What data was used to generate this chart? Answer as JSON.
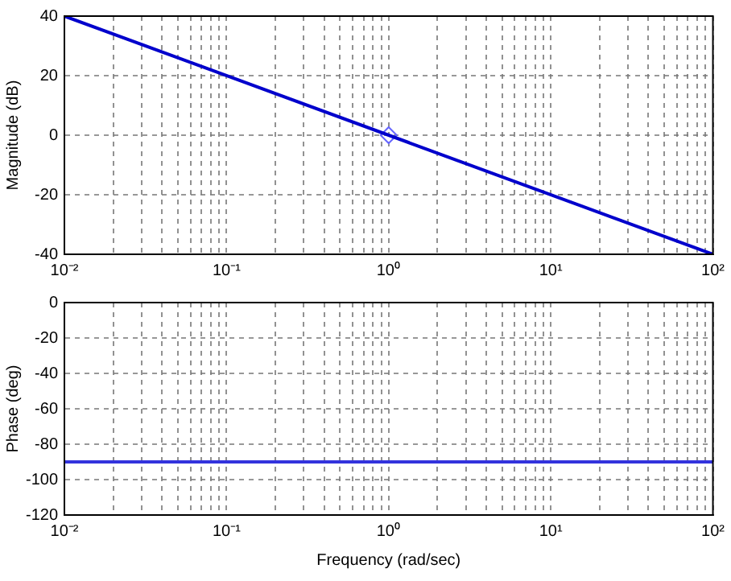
{
  "chart_data": [
    {
      "type": "line",
      "ylabel": "Magnitude (dB)",
      "xlim": [
        0.01,
        100
      ],
      "ylim": [
        -40,
        40
      ],
      "yticks": [
        -40,
        -20,
        0,
        20,
        40
      ],
      "log": "x",
      "grid": true,
      "line_style": "solid",
      "xticks": [
        {
          "value": 0.01,
          "label": "10⁻²"
        },
        {
          "value": 0.02,
          "label": null
        },
        {
          "value": 0.03,
          "label": null
        },
        {
          "value": 0.04,
          "label": null
        },
        {
          "value": 0.05,
          "label": null
        },
        {
          "value": 0.06,
          "label": null
        },
        {
          "value": 0.07,
          "label": null
        },
        {
          "value": 0.08,
          "label": null
        },
        {
          "value": 0.09,
          "label": null
        },
        {
          "value": 0.1,
          "label": "10⁻¹"
        },
        {
          "value": 0.2,
          "label": null
        },
        {
          "value": 0.3,
          "label": null
        },
        {
          "value": 0.4,
          "label": null
        },
        {
          "value": 0.5,
          "label": null
        },
        {
          "value": 0.6,
          "label": null
        },
        {
          "value": 0.7,
          "label": null
        },
        {
          "value": 0.8,
          "label": null
        },
        {
          "value": 0.9,
          "label": null
        },
        {
          "value": 1,
          "label": "10⁰"
        },
        {
          "value": 2,
          "label": null
        },
        {
          "value": 3,
          "label": null
        },
        {
          "value": 4,
          "label": null
        },
        {
          "value": 5,
          "label": null
        },
        {
          "value": 6,
          "label": null
        },
        {
          "value": 7,
          "label": null
        },
        {
          "value": 8,
          "label": null
        },
        {
          "value": 9,
          "label": null
        },
        {
          "value": 10,
          "label": "10¹"
        },
        {
          "value": 20,
          "label": null
        },
        {
          "value": 30,
          "label": null
        },
        {
          "value": 40,
          "label": null
        },
        {
          "value": 50,
          "label": null
        },
        {
          "value": 60,
          "label": null
        },
        {
          "value": 70,
          "label": null
        },
        {
          "value": 80,
          "label": null
        },
        {
          "value": 90,
          "label": null
        },
        {
          "value": 100,
          "label": "10²"
        }
      ],
      "series": [
        {
          "type": "line",
          "x": [
            0.01,
            100
          ],
          "values": [
            40,
            -40
          ],
          "color": "#0000cc"
        },
        {
          "type": "scatter",
          "x": [
            1
          ],
          "values": [
            0
          ],
          "color": "#6666ff",
          "marker": "diamond"
        }
      ]
    },
    {
      "type": "line",
      "xlabel": "Frequency (rad/sec)",
      "ylabel": "Phase (deg)",
      "xlim": [
        0.01,
        100
      ],
      "ylim": [
        -120,
        0
      ],
      "yticks": [
        -120,
        -100,
        -80,
        -60,
        -40,
        -20,
        0
      ],
      "log": "x",
      "grid": true,
      "line_style": "solid",
      "xticks": [
        {
          "value": 0.01,
          "label": "10⁻²"
        },
        {
          "value": 0.02,
          "label": null
        },
        {
          "value": 0.03,
          "label": null
        },
        {
          "value": 0.04,
          "label": null
        },
        {
          "value": 0.05,
          "label": null
        },
        {
          "value": 0.06,
          "label": null
        },
        {
          "value": 0.07,
          "label": null
        },
        {
          "value": 0.08,
          "label": null
        },
        {
          "value": 0.09,
          "label": null
        },
        {
          "value": 0.1,
          "label": "10⁻¹"
        },
        {
          "value": 0.2,
          "label": null
        },
        {
          "value": 0.3,
          "label": null
        },
        {
          "value": 0.4,
          "label": null
        },
        {
          "value": 0.5,
          "label": null
        },
        {
          "value": 0.6,
          "label": null
        },
        {
          "value": 0.7,
          "label": null
        },
        {
          "value": 0.8,
          "label": null
        },
        {
          "value": 0.9,
          "label": null
        },
        {
          "value": 1,
          "label": "10⁰"
        },
        {
          "value": 2,
          "label": null
        },
        {
          "value": 3,
          "label": null
        },
        {
          "value": 4,
          "label": null
        },
        {
          "value": 5,
          "label": null
        },
        {
          "value": 6,
          "label": null
        },
        {
          "value": 7,
          "label": null
        },
        {
          "value": 8,
          "label": null
        },
        {
          "value": 9,
          "label": null
        },
        {
          "value": 10,
          "label": "10¹"
        },
        {
          "value": 20,
          "label": null
        },
        {
          "value": 30,
          "label": null
        },
        {
          "value": 40,
          "label": null
        },
        {
          "value": 50,
          "label": null
        },
        {
          "value": 60,
          "label": null
        },
        {
          "value": 70,
          "label": null
        },
        {
          "value": 80,
          "label": null
        },
        {
          "value": 90,
          "label": null
        },
        {
          "value": 100,
          "label": "10²"
        }
      ],
      "series": [
        {
          "type": "line",
          "x": [
            0.01,
            100
          ],
          "values": [
            -90,
            -90
          ],
          "color": "#3333dd"
        }
      ]
    }
  ]
}
